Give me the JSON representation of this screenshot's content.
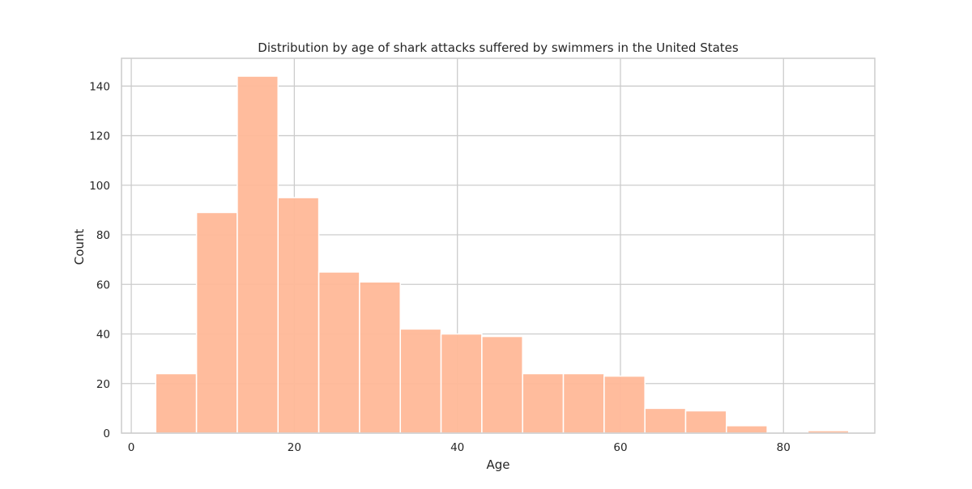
{
  "chart_data": {
    "type": "bar",
    "title": "Distribution by age of shark attacks suffered by swimmers in the United States",
    "xlabel": "Age",
    "ylabel": "Count",
    "xlim": [
      -1.2,
      91.2
    ],
    "ylim": [
      0,
      151.2
    ],
    "xticks": [
      0,
      20,
      40,
      60,
      80
    ],
    "yticks": [
      0,
      20,
      40,
      60,
      80,
      100,
      120,
      140
    ],
    "grid": true,
    "bins": [
      {
        "x0": 3,
        "x1": 8,
        "value": 24
      },
      {
        "x0": 8,
        "x1": 13,
        "value": 89
      },
      {
        "x0": 13,
        "x1": 18,
        "value": 144
      },
      {
        "x0": 18,
        "x1": 23,
        "value": 95
      },
      {
        "x0": 23,
        "x1": 28,
        "value": 65
      },
      {
        "x0": 28,
        "x1": 33,
        "value": 61
      },
      {
        "x0": 33,
        "x1": 38,
        "value": 42
      },
      {
        "x0": 38,
        "x1": 43,
        "value": 40
      },
      {
        "x0": 43,
        "x1": 48,
        "value": 39
      },
      {
        "x0": 48,
        "x1": 53,
        "value": 24
      },
      {
        "x0": 53,
        "x1": 58,
        "value": 24
      },
      {
        "x0": 58,
        "x1": 63,
        "value": 23
      },
      {
        "x0": 63,
        "x1": 68,
        "value": 10
      },
      {
        "x0": 68,
        "x1": 73,
        "value": 9
      },
      {
        "x0": 73,
        "x1": 78,
        "value": 3
      },
      {
        "x0": 78,
        "x1": 83,
        "value": 0
      },
      {
        "x0": 83,
        "x1": 88,
        "value": 1
      }
    ],
    "colors": {
      "bar_fill": "#ffb898",
      "bar_edge": "#ffffff",
      "grid": "#cccccc",
      "spine": "#cccccc",
      "text": "#262626"
    }
  }
}
